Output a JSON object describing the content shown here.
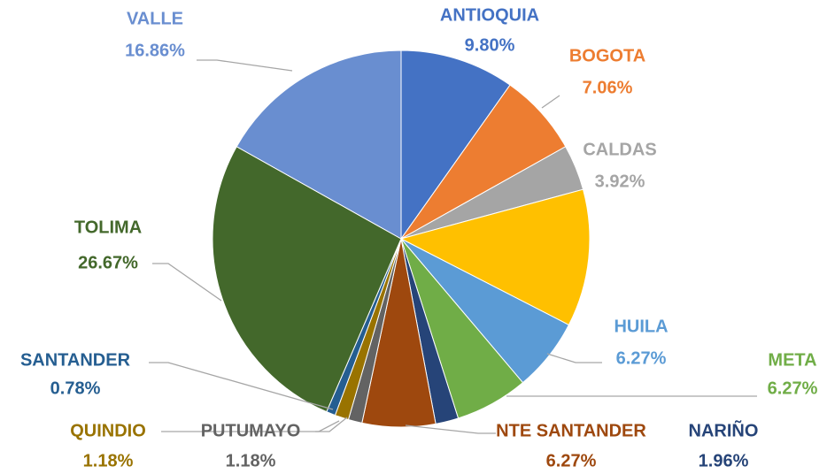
{
  "chart_data": {
    "type": "pie",
    "categories": [
      "ANTIOQUIA",
      "BOGOTA",
      "CALDAS",
      null,
      "HUILA",
      "META",
      "NARIÑO",
      "NTE SANTANDER",
      "PUTUMAYO",
      "QUINDIO",
      "SANTANDER",
      "TOLIMA",
      "VALLE"
    ],
    "values": [
      9.8,
      7.06,
      3.92,
      11.78,
      6.27,
      6.27,
      1.96,
      6.27,
      1.18,
      1.18,
      0.78,
      26.67,
      16.86
    ],
    "value_labels": [
      "9.80%",
      "7.06%",
      "3.92%",
      null,
      "6.27%",
      "6.27%",
      "1.96%",
      "6.27%",
      "1.18%",
      "1.18%",
      "0.78%",
      "26.67%",
      "16.86%"
    ],
    "colors": [
      "#4472c4",
      "#ed7d31",
      "#a5a5a5",
      "#ffc000",
      "#5b9bd5",
      "#70ad47",
      "#264478",
      "#9e480e",
      "#636363",
      "#997300",
      "#255e91",
      "#43682b",
      "#698ed0"
    ]
  }
}
